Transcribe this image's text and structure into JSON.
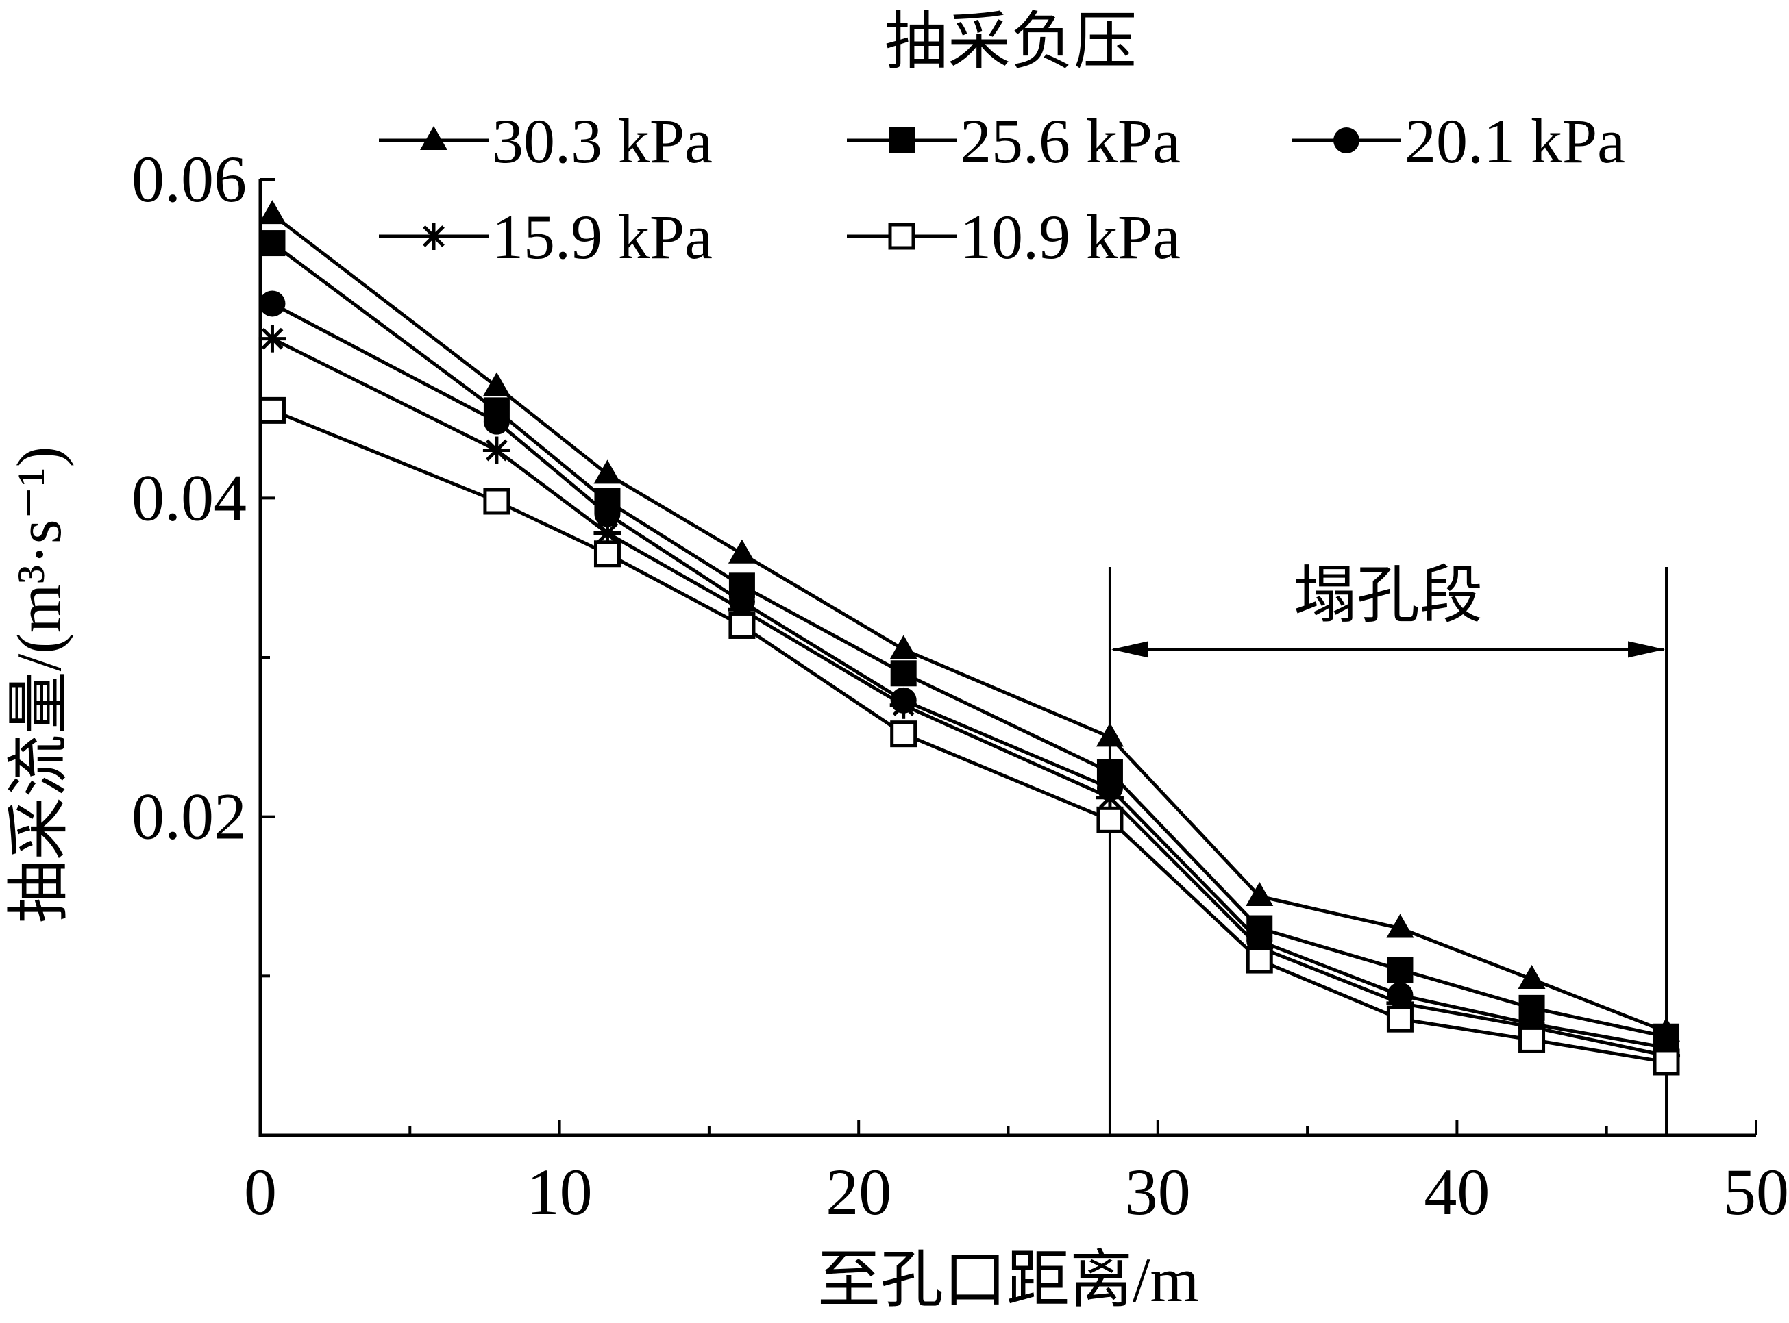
{
  "chart_data": {
    "type": "line",
    "title": "",
    "xlabel": "至孔口距离/m",
    "ylabel": "抽采流量/(m³·s⁻¹)",
    "xlim": [
      0,
      50
    ],
    "ylim": [
      0,
      0.06
    ],
    "x_ticks": [
      0,
      10,
      20,
      30,
      40,
      50
    ],
    "x_tick_labels": [
      "0",
      "10",
      "20",
      "30",
      "40",
      "50"
    ],
    "y_ticks": [
      0.02,
      0.04,
      0.06
    ],
    "y_tick_labels": [
      "0.02",
      "0.04",
      "0.06"
    ],
    "grid": false,
    "legend_title": "抽采负压",
    "legend_position": "top",
    "x": [
      0.4,
      7.9,
      11.6,
      16.1,
      21.5,
      28.4,
      33.4,
      38.1,
      42.5,
      47.0
    ],
    "series": [
      {
        "name": "30.3 kPa",
        "marker": "triangle-filled",
        "values": [
          0.0578,
          0.047,
          0.0415,
          0.0365,
          0.0305,
          0.025,
          0.015,
          0.013,
          0.0098,
          0.0065
        ]
      },
      {
        "name": "25.6 kPa",
        "marker": "square-filled",
        "values": [
          0.056,
          0.0455,
          0.0398,
          0.0345,
          0.029,
          0.0228,
          0.013,
          0.0104,
          0.008,
          0.0062
        ]
      },
      {
        "name": "20.1 kPa",
        "marker": "circle-filled",
        "values": [
          0.0522,
          0.0448,
          0.039,
          0.0335,
          0.0273,
          0.0218,
          0.0122,
          0.0088,
          0.007,
          0.0055
        ]
      },
      {
        "name": "15.9 kPa",
        "marker": "asterisk",
        "values": [
          0.05,
          0.043,
          0.0378,
          0.033,
          0.027,
          0.0212,
          0.0118,
          0.0083,
          0.0068,
          0.005
        ]
      },
      {
        "name": "10.9 kPa",
        "marker": "square-open",
        "values": [
          0.0455,
          0.0398,
          0.0365,
          0.032,
          0.0252,
          0.0198,
          0.011,
          0.0073,
          0.006,
          0.0046
        ]
      }
    ],
    "annotation": {
      "label": "塌孔段",
      "x_start": 28.4,
      "x_end": 47.0,
      "arrow_y": 0.0305
    }
  }
}
